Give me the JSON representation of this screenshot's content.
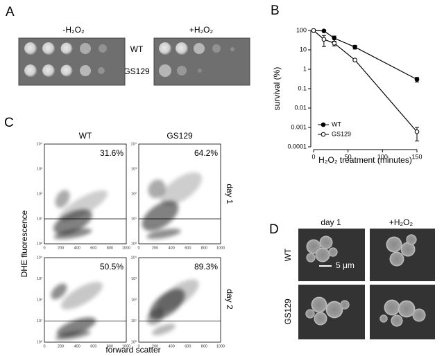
{
  "figure": {
    "panel_labels": [
      "A",
      "B",
      "C",
      "D"
    ]
  },
  "panel_a": {
    "columns": [
      "-H₂O₂",
      "+H₂O₂"
    ],
    "rows": [
      "WT",
      "GS129"
    ]
  },
  "chart_data": {
    "type": "line",
    "xlabel": "H₂O₂ treatment (minutes)",
    "ylabel": "survival (%)",
    "x": [
      0,
      15,
      30,
      60,
      150
    ],
    "xlim": [
      0,
      150
    ],
    "xticks": [
      0,
      50,
      100,
      150
    ],
    "ylim": [
      0.0001,
      100
    ],
    "yticks": [
      0.0001,
      0.001,
      0.01,
      0.1,
      1,
      10,
      100
    ],
    "log_y": true,
    "legend": "lower left",
    "series": [
      {
        "name": "WT",
        "color": "#000000",
        "marker": "filled",
        "values": [
          100,
          95,
          40,
          14,
          0.3
        ],
        "errors": [
          0,
          0,
          12,
          3,
          0.08
        ]
      },
      {
        "name": "GS129",
        "color": "#000000",
        "marker": "open",
        "values": [
          100,
          35,
          22,
          3,
          0.0006
        ],
        "errors": [
          0,
          20,
          6,
          0.4,
          0.0004
        ]
      }
    ]
  },
  "panel_c": {
    "columns": [
      "WT",
      "GS129"
    ],
    "rows": [
      "day 1",
      "day 2"
    ],
    "percentages": [
      [
        "31.6%",
        "64.2%"
      ],
      [
        "50.5%",
        "89.3%"
      ]
    ],
    "ylabel": "DHE fluorescence",
    "xlabel": "forward scatter",
    "xticks": [
      0,
      200,
      400,
      600,
      800,
      1000
    ],
    "yticks": [
      "10⁰",
      "10¹",
      "10²",
      "10³",
      "10⁴"
    ]
  },
  "panel_d": {
    "columns": [
      "day 1",
      "+H₂O₂"
    ],
    "rows": [
      "WT",
      "GS129"
    ],
    "scale_bar": "5 μm"
  }
}
